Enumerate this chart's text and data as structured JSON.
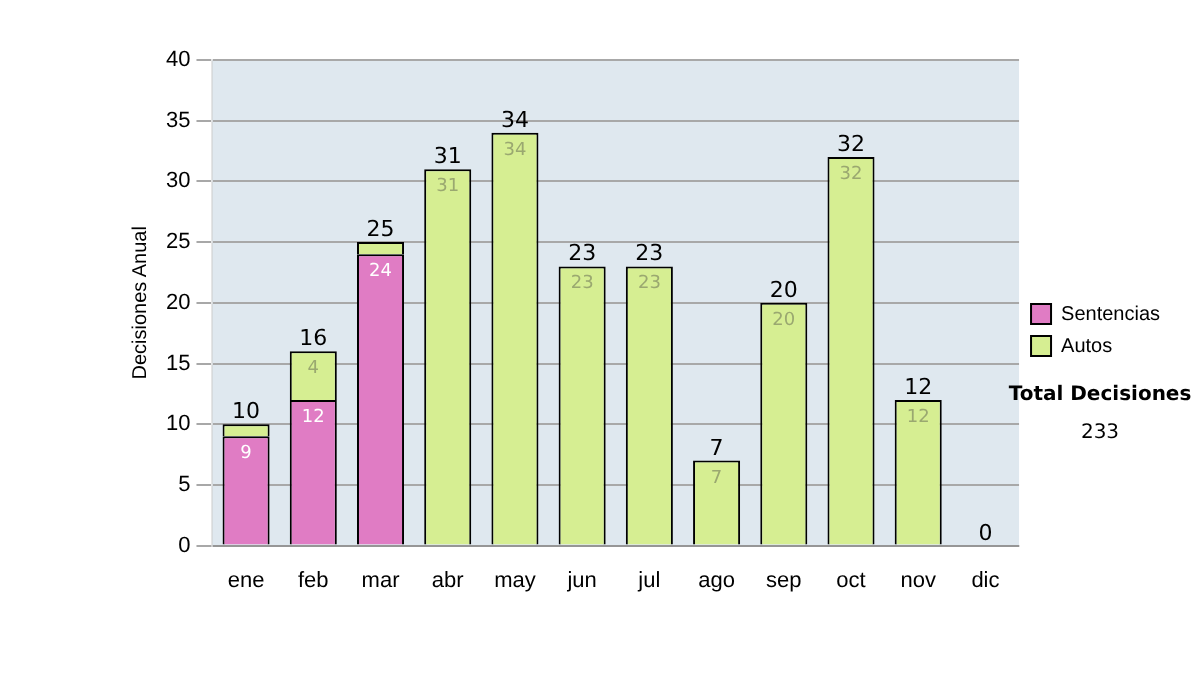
{
  "chart_data": {
    "type": "bar",
    "stacked": true,
    "ylabel": "Decisiones Anual",
    "categories": [
      "ene",
      "feb",
      "mar",
      "abr",
      "may",
      "jun",
      "jul",
      "ago",
      "sep",
      "oct",
      "nov",
      "dic"
    ],
    "series": [
      {
        "name": "Sentencias",
        "color": "#e07cc4",
        "values": [
          9,
          12,
          24,
          0,
          0,
          0,
          0,
          0,
          0,
          0,
          0,
          0
        ],
        "value_labels": [
          "9",
          "12",
          "24",
          null,
          null,
          null,
          null,
          null,
          null,
          null,
          null,
          null
        ]
      },
      {
        "name": "Autos",
        "color": "#d6ee92",
        "values": [
          1,
          4,
          1,
          31,
          34,
          23,
          23,
          7,
          20,
          32,
          12,
          0
        ],
        "value_labels": [
          null,
          "4",
          null,
          "31",
          "34",
          "23",
          "23",
          "7",
          "20",
          "32",
          "12",
          null
        ]
      }
    ],
    "totals": [
      "10",
      "16",
      "25",
      "31",
      "34",
      "23",
      "23",
      "7",
      "20",
      "32",
      "12",
      "0"
    ],
    "ylim": [
      0,
      40
    ],
    "yticks": [
      0,
      5,
      10,
      15,
      20,
      25,
      30,
      35,
      40
    ],
    "grid": "y",
    "legend": "right",
    "annotations": [
      "Total Decisiones",
      "233"
    ]
  }
}
